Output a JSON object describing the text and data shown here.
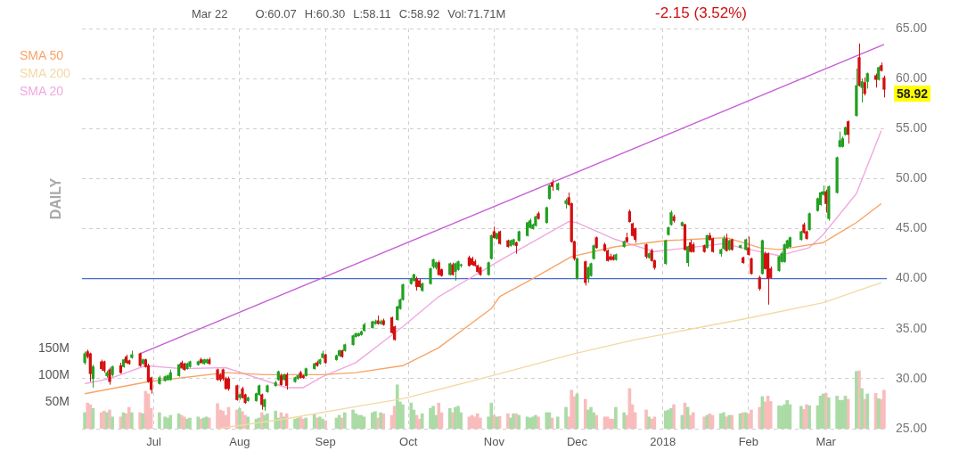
{
  "chart_data": {
    "type": "candlestick",
    "title": "Mar 22",
    "subtitle": "-2.15 (3.52%)",
    "y2label": "DAILY",
    "annotations": [
      "O:60.07",
      "H:60.30",
      "L:58.11",
      "C:58.92",
      "Vol:71.71M",
      "58.92"
    ],
    "xlim": [
      "2017-06-05",
      "2018-03-23"
    ],
    "xticks": [
      {
        "value": "2017-07-01",
        "label": "Jul"
      },
      {
        "value": "2017-08-01",
        "label": "Aug"
      },
      {
        "value": "2017-09-01",
        "label": "Sep"
      },
      {
        "value": "2017-10-01",
        "label": "Oct"
      },
      {
        "value": "2017-11-01",
        "label": "Nov"
      },
      {
        "value": "2017-12-01",
        "label": "Dec"
      },
      {
        "value": "2018-01-01",
        "label": "2018"
      },
      {
        "value": "2018-02-01",
        "label": "Feb"
      },
      {
        "value": "2018-03-01",
        "label": "Mar"
      }
    ],
    "ylim": [
      25,
      65
    ],
    "yticks": [
      {
        "value": 25,
        "label": "25.00"
      },
      {
        "value": 30,
        "label": "30.00"
      },
      {
        "value": 35,
        "label": "35.00"
      },
      {
        "value": 40,
        "label": "40.00"
      },
      {
        "value": 45,
        "label": "45.00"
      },
      {
        "value": 50,
        "label": "50.00"
      },
      {
        "value": 55,
        "label": "55.00"
      },
      {
        "value": 60,
        "label": "60.00"
      },
      {
        "value": 65,
        "label": "65.00"
      }
    ],
    "y2lim": [
      0,
      748
    ],
    "y2ticks": [
      {
        "value": 50,
        "label": "50M"
      },
      {
        "value": 100,
        "label": "100M"
      },
      {
        "value": 150,
        "label": "150M"
      }
    ],
    "grid": true,
    "legend": "top left",
    "ref_lines": [
      {
        "axis": "y",
        "value": 40,
        "color": "#4a6cd4"
      }
    ],
    "x": [
      "2017-06-06",
      "2017-06-07",
      "2017-06-08",
      "2017-06-09",
      "2017-06-12",
      "2017-06-13",
      "2017-06-14",
      "2017-06-15",
      "2017-06-16",
      "2017-06-19",
      "2017-06-20",
      "2017-06-21",
      "2017-06-22",
      "2017-06-23",
      "2017-06-26",
      "2017-06-27",
      "2017-06-28",
      "2017-06-29",
      "2017-06-30",
      "2017-07-03",
      "2017-07-05",
      "2017-07-06",
      "2017-07-07",
      "2017-07-10",
      "2017-07-11",
      "2017-07-12",
      "2017-07-13",
      "2017-07-14",
      "2017-07-17",
      "2017-07-18",
      "2017-07-19",
      "2017-07-20",
      "2017-07-21",
      "2017-07-24",
      "2017-07-25",
      "2017-07-26",
      "2017-07-27",
      "2017-07-28",
      "2017-07-31",
      "2017-08-01",
      "2017-08-02",
      "2017-08-03",
      "2017-08-04",
      "2017-08-07",
      "2017-08-08",
      "2017-08-09",
      "2017-08-10",
      "2017-08-11",
      "2017-08-14",
      "2017-08-15",
      "2017-08-16",
      "2017-08-17",
      "2017-08-18",
      "2017-08-21",
      "2017-08-22",
      "2017-08-23",
      "2017-08-24",
      "2017-08-25",
      "2017-08-28",
      "2017-08-29",
      "2017-08-30",
      "2017-08-31",
      "2017-09-01",
      "2017-09-05",
      "2017-09-06",
      "2017-09-07",
      "2017-09-08",
      "2017-09-11",
      "2017-09-12",
      "2017-09-13",
      "2017-09-14",
      "2017-09-15",
      "2017-09-18",
      "2017-09-19",
      "2017-09-20",
      "2017-09-21",
      "2017-09-22",
      "2017-09-25",
      "2017-09-26",
      "2017-09-27",
      "2017-09-28",
      "2017-09-29",
      "2017-10-02",
      "2017-10-03",
      "2017-10-04",
      "2017-10-05",
      "2017-10-06",
      "2017-10-09",
      "2017-10-10",
      "2017-10-11",
      "2017-10-12",
      "2017-10-13",
      "2017-10-16",
      "2017-10-17",
      "2017-10-18",
      "2017-10-19",
      "2017-10-20",
      "2017-10-23",
      "2017-10-24",
      "2017-10-25",
      "2017-10-26",
      "2017-10-27",
      "2017-10-30",
      "2017-10-31",
      "2017-11-01",
      "2017-11-02",
      "2017-11-03",
      "2017-11-06",
      "2017-11-07",
      "2017-11-08",
      "2017-11-09",
      "2017-11-10",
      "2017-11-13",
      "2017-11-14",
      "2017-11-15",
      "2017-11-16",
      "2017-11-17",
      "2017-11-20",
      "2017-11-21",
      "2017-11-22",
      "2017-11-24",
      "2017-11-27",
      "2017-11-28",
      "2017-11-29",
      "2017-11-30",
      "2017-12-01",
      "2017-12-04",
      "2017-12-05",
      "2017-12-06",
      "2017-12-07",
      "2017-12-08",
      "2017-12-11",
      "2017-12-12",
      "2017-12-13",
      "2017-12-14",
      "2017-12-15",
      "2017-12-18",
      "2017-12-19",
      "2017-12-20",
      "2017-12-21",
      "2017-12-22",
      "2017-12-26",
      "2017-12-27",
      "2017-12-28",
      "2017-12-29",
      "2018-01-02",
      "2018-01-03",
      "2018-01-04",
      "2018-01-05",
      "2018-01-08",
      "2018-01-09",
      "2018-01-10",
      "2018-01-11",
      "2018-01-12",
      "2018-01-16",
      "2018-01-17",
      "2018-01-18",
      "2018-01-19",
      "2018-01-22",
      "2018-01-23",
      "2018-01-24",
      "2018-01-25",
      "2018-01-26",
      "2018-01-29",
      "2018-01-30",
      "2018-01-31",
      "2018-02-01",
      "2018-02-02",
      "2018-02-05",
      "2018-02-06",
      "2018-02-07",
      "2018-02-08",
      "2018-02-09",
      "2018-02-12",
      "2018-02-13",
      "2018-02-14",
      "2018-02-15",
      "2018-02-16",
      "2018-02-20",
      "2018-02-21",
      "2018-02-22",
      "2018-02-23",
      "2018-02-26",
      "2018-02-27",
      "2018-02-28",
      "2018-03-01",
      "2018-03-02",
      "2018-03-05",
      "2018-03-06",
      "2018-03-07",
      "2018-03-08",
      "2018-03-09",
      "2018-03-12",
      "2018-03-13",
      "2018-03-14",
      "2018-03-15",
      "2018-03-16",
      "2018-03-19",
      "2018-03-20",
      "2018-03-21",
      "2018-03-22"
    ],
    "series": [
      {
        "type": "bar",
        "axis": "y2",
        "color": "#aadba5",
        "values": [
          30,
          null,
          null,
          38,
          null,
          null,
          30,
          null,
          22,
          null,
          30,
          null,
          null,
          30,
          null,
          28,
          null,
          null,
          null,
          30,
          22,
          20,
          25,
          28,
          null,
          null,
          18,
          20,
          22,
          null,
          20,
          22,
          null,
          null,
          null,
          null,
          null,
          null,
          null,
          38,
          null,
          null,
          22,
          18,
          20,
          null,
          25,
          28,
          33,
          20,
          null,
          22,
          null,
          18,
          20,
          null,
          null,
          20,
          27,
          null,
          22,
          18,
          null,
          20,
          25,
          null,
          30,
          35,
          28,
          25,
          25,
          22,
          30,
          32,
          null,
          30,
          null,
          null,
          null,
          82,
          50,
          45,
          48,
          35,
          null,
          null,
          28,
          38,
          42,
          25,
          null,
          null,
          38,
          null,
          40,
          42,
          30,
          null,
          null,
          null,
          null,
          null,
          22,
          48,
          null,
          22,
          null,
          null,
          20,
          28,
          null,
          25,
          22,
          20,
          22,
          25,
          null,
          30,
          30,
          null,
          22,
          40,
          null,
          null,
          null,
          65,
          null,
          35,
          40,
          30,
          null,
          null,
          null,
          null,
          null,
          40,
          30,
          null,
          null,
          null,
          null,
          null,
          22,
          null,
          null,
          33,
          35,
          38,
          null,
          25,
          null,
          40,
          null,
          null,
          null,
          25,
          null,
          null,
          28,
          30,
          null,
          25,
          null,
          28,
          null,
          30,
          null,
          null,
          null,
          60,
          null,
          null,
          null,
          43,
          42,
          45,
          53,
          45,
          42,
          null,
          null,
          43,
          43,
          61,
          65,
          null,
          58,
          61,
          53,
          53,
          61,
          null,
          107,
          null,
          75,
          null,
          65,
          null,
          56,
          null,
          null
        ]
      },
      {
        "type": "bar",
        "axis": "y2",
        "color": "#f9bcbc",
        "values": [
          null,
          48,
          45,
          null,
          30,
          33,
          null,
          35,
          null,
          22,
          null,
          28,
          40,
          null,
          30,
          null,
          70,
          65,
          38,
          null,
          null,
          null,
          null,
          null,
          25,
          22,
          null,
          null,
          null,
          18,
          null,
          null,
          20,
          47,
          35,
          33,
          25,
          40,
          35,
          null,
          32,
          25,
          null,
          null,
          null,
          30,
          null,
          null,
          null,
          null,
          30,
          null,
          28,
          null,
          null,
          22,
          18,
          null,
          null,
          20,
          null,
          null,
          15,
          null,
          null,
          20,
          null,
          null,
          null,
          null,
          null,
          null,
          null,
          null,
          20,
          null,
          28,
          25,
          42,
          null,
          null,
          null,
          null,
          null,
          25,
          18,
          null,
          null,
          null,
          null,
          48,
          30,
          null,
          30,
          null,
          null,
          null,
          22,
          25,
          22,
          28,
          20,
          null,
          null,
          25,
          null,
          23,
          28,
          null,
          null,
          28,
          null,
          null,
          null,
          null,
          null,
          22,
          null,
          null,
          20,
          null,
          null,
          22,
          72,
          60,
          null,
          55,
          null,
          null,
          null,
          25,
          22,
          22,
          18,
          18,
          null,
          null,
          25,
          75,
          45,
          30,
          35,
          null,
          18,
          22,
          null,
          null,
          null,
          45,
          null,
          48,
          null,
          25,
          30,
          22,
          null,
          28,
          25,
          null,
          null,
          22,
          null,
          25,
          null,
          30,
          null,
          28,
          35,
          40,
          null,
          50,
          61,
          51,
          null,
          null,
          null,
          null,
          null,
          null,
          36,
          45,
          null,
          null,
          null,
          null,
          66,
          null,
          null,
          null,
          null,
          null,
          55,
          null,
          108,
          null,
          55,
          null,
          66,
          null,
          55,
          72
        ]
      },
      {
        "type": "line",
        "name": "SMA 50",
        "color": "#f7a467",
        "x": [
          "2017-06-06",
          "2017-06-29",
          "2017-07-27",
          "2017-08-10",
          "2017-08-31",
          "2017-09-12",
          "2017-09-29",
          "2017-10-12",
          "2017-10-31",
          "2017-11-03",
          "2017-11-15",
          "2017-11-29",
          "2017-12-15",
          "2018-01-02",
          "2018-01-24",
          "2018-02-05",
          "2018-02-12",
          "2018-02-28",
          "2018-03-12",
          "2018-03-21"
        ],
        "values": [
          28.5,
          29.7,
          30.6,
          30.4,
          30.4,
          30.6,
          31.3,
          33.1,
          37.0,
          38.2,
          40.0,
          42.2,
          43.2,
          43.8,
          44.1,
          43.1,
          42.9,
          43.6,
          45.6,
          47.5
        ]
      },
      {
        "type": "line",
        "name": "SMA 200",
        "color": "#f3d9a4",
        "x": [
          "2017-07-24",
          "2017-08-18",
          "2017-09-14",
          "2017-09-29",
          "2017-10-30",
          "2017-11-30",
          "2017-12-22",
          "2018-01-31",
          "2018-02-28",
          "2018-03-21"
        ],
        "values": [
          25.0,
          26.0,
          27.3,
          28.0,
          30.2,
          32.5,
          33.9,
          36.0,
          37.6,
          39.6
        ]
      },
      {
        "type": "line",
        "name": "SMA 20",
        "color": "#f0a8e0",
        "x": [
          "2017-06-06",
          "2017-06-15",
          "2017-06-28",
          "2017-07-11",
          "2017-07-27",
          "2017-08-18",
          "2017-08-24",
          "2017-08-31",
          "2017-09-12",
          "2017-09-29",
          "2017-10-12",
          "2017-11-03",
          "2017-11-28",
          "2017-12-01",
          "2017-12-14",
          "2017-12-29",
          "2018-01-23",
          "2018-02-05",
          "2018-02-12",
          "2018-02-23",
          "2018-02-28",
          "2018-03-12",
          "2018-03-21"
        ],
        "values": [
          29.5,
          30.0,
          31.3,
          31.0,
          31.1,
          29.1,
          29.1,
          30.2,
          31.6,
          35.2,
          38.2,
          41.8,
          45.7,
          45.6,
          44.0,
          42.7,
          43.5,
          42.7,
          42.3,
          43.1,
          44.4,
          48.5,
          54.8
        ]
      },
      {
        "type": "line",
        "color": "#c65ed6",
        "x": [
          "2017-06-26",
          "2018-03-22"
        ],
        "values": [
          32.5,
          63.4
        ]
      },
      {
        "color": "#22a022",
        "ohlc": [
          [
            31.6,
            32.7,
            31.4,
            32.5
          ],
          null,
          null,
          [
            30.0,
            31.4,
            29.1,
            31.2
          ],
          null,
          null,
          [
            30.3,
            30.8,
            30.1,
            30.6
          ],
          null,
          [
            30.4,
            31.3,
            30.2,
            31.2
          ],
          null,
          [
            31.2,
            32.0,
            31.1,
            31.9
          ],
          null,
          null,
          [
            32.1,
            32.8,
            32.0,
            32.4
          ],
          null,
          [
            31.5,
            32.0,
            31.4,
            31.9
          ],
          null,
          null,
          null,
          [
            29.5,
            30.3,
            29.4,
            30.1
          ],
          [
            29.8,
            30.3,
            29.7,
            30.2
          ],
          [
            29.9,
            30.4,
            29.8,
            30.3
          ],
          [
            29.9,
            30.9,
            29.8,
            30.6
          ],
          [
            30.3,
            31.5,
            30.2,
            31.4
          ],
          null,
          null,
          [
            31.0,
            31.6,
            30.9,
            31.5
          ],
          [
            31.2,
            31.8,
            31.1,
            31.7
          ],
          [
            31.4,
            31.8,
            31.3,
            31.7
          ],
          null,
          [
            31.5,
            32.0,
            31.4,
            31.9
          ],
          [
            31.6,
            32.0,
            31.5,
            31.9
          ],
          null,
          null,
          null,
          null,
          null,
          null,
          null,
          [
            28.1,
            28.5,
            27.9,
            28.4
          ],
          null,
          null,
          [
            27.8,
            28.2,
            27.7,
            28.1
          ],
          [
            27.8,
            28.6,
            27.7,
            28.5
          ],
          [
            28.4,
            29.4,
            28.3,
            29.3
          ],
          null,
          [
            27.2,
            28.0,
            26.8,
            27.9
          ],
          [
            28.7,
            29.4,
            28.6,
            29.3
          ],
          [
            29.3,
            29.8,
            29.2,
            29.6
          ],
          [
            29.9,
            30.8,
            29.8,
            30.7
          ],
          null,
          [
            29.9,
            30.5,
            29.8,
            30.4
          ],
          null,
          [
            29.7,
            30.2,
            29.6,
            30.1
          ],
          [
            30.0,
            30.4,
            29.9,
            30.3
          ],
          null,
          null,
          [
            30.3,
            31.1,
            30.2,
            31.0
          ],
          [
            31.0,
            31.6,
            30.9,
            31.5
          ],
          null,
          [
            31.5,
            32.0,
            31.4,
            31.9
          ],
          [
            32.1,
            32.8,
            32.0,
            32.5
          ],
          null,
          [
            31.9,
            32.4,
            31.8,
            32.3
          ],
          [
            32.3,
            32.9,
            32.2,
            32.8
          ],
          null,
          [
            32.8,
            33.5,
            32.7,
            33.4
          ],
          [
            33.4,
            34.4,
            33.3,
            34.3
          ],
          [
            34.2,
            34.6,
            34.1,
            34.5
          ],
          [
            34.3,
            34.6,
            34.2,
            34.5
          ],
          [
            34.4,
            34.8,
            34.3,
            34.7
          ],
          [
            34.8,
            35.6,
            34.7,
            35.4
          ],
          [
            35.1,
            35.8,
            35.0,
            35.7
          ],
          [
            35.5,
            35.9,
            35.4,
            35.7
          ],
          null,
          [
            35.5,
            35.9,
            35.4,
            35.7
          ],
          null,
          null,
          null,
          [
            35.9,
            37.3,
            35.8,
            37.2
          ],
          [
            37.0,
            38.0,
            36.9,
            37.9
          ],
          [
            37.9,
            39.5,
            37.8,
            39.4
          ],
          [
            39.5,
            40.1,
            39.4,
            40.0
          ],
          [
            39.8,
            40.5,
            39.7,
            40.4
          ],
          null,
          null,
          [
            38.8,
            39.6,
            38.7,
            39.5
          ],
          [
            39.5,
            41.1,
            39.4,
            41.0
          ],
          [
            41.2,
            42.0,
            41.0,
            41.9
          ],
          [
            41.1,
            41.7,
            40.9,
            41.6
          ],
          null,
          null,
          [
            40.4,
            41.6,
            40.3,
            41.5
          ],
          null,
          [
            40.7,
            41.6,
            39.8,
            41.5
          ],
          [
            40.9,
            41.8,
            40.8,
            41.7
          ],
          [
            41.3,
            41.5,
            41.1,
            41.4
          ],
          null,
          null,
          null,
          null,
          null,
          [
            40.4,
            41.7,
            40.3,
            41.6
          ],
          [
            42.0,
            44.4,
            41.9,
            44.3
          ],
          null,
          [
            44.0,
            44.6,
            43.9,
            44.5
          ],
          null,
          null,
          [
            43.3,
            43.9,
            43.2,
            43.8
          ],
          [
            43.4,
            44.0,
            43.3,
            43.9
          ],
          null,
          [
            43.8,
            44.8,
            43.7,
            44.7
          ],
          [
            44.3,
            45.7,
            44.2,
            45.6
          ],
          [
            45.1,
            46.0,
            45.0,
            45.8
          ],
          [
            45.0,
            45.5,
            44.9,
            45.4
          ],
          [
            45.3,
            46.3,
            45.2,
            46.2
          ],
          null,
          [
            45.6,
            47.2,
            45.5,
            47.1
          ],
          [
            48.0,
            49.4,
            47.9,
            49.3
          ],
          null,
          [
            48.9,
            49.6,
            48.8,
            49.5
          ],
          [
            47.5,
            48.0,
            47.0,
            47.8
          ],
          null,
          null,
          null,
          [
            40.0,
            42.1,
            39.9,
            42.0
          ],
          null,
          [
            40.0,
            41.2,
            39.6,
            41.1
          ],
          [
            40.3,
            41.6,
            40.2,
            41.5
          ],
          [
            42.0,
            43.4,
            41.9,
            43.3
          ],
          null,
          null,
          null,
          null,
          null,
          [
            41.9,
            42.5,
            41.8,
            42.4
          ],
          [
            43.2,
            43.8,
            43.1,
            43.7
          ],
          null,
          null,
          null,
          null,
          null,
          [
            42.1,
            42.6,
            42.0,
            42.5
          ],
          null,
          null,
          [
            41.5,
            43.9,
            41.4,
            43.8
          ],
          [
            44.4,
            45.2,
            44.3,
            45.1
          ],
          [
            45.4,
            46.8,
            45.3,
            46.6
          ],
          null,
          [
            45.3,
            45.7,
            45.2,
            45.6
          ],
          null,
          [
            41.6,
            43.3,
            41.2,
            43.2
          ],
          null,
          null,
          null,
          [
            43.1,
            44.4,
            43.0,
            44.3
          ],
          null,
          null,
          [
            42.5,
            43.0,
            42.2,
            42.9
          ],
          [
            43.0,
            44.3,
            42.9,
            44.0
          ],
          null,
          [
            42.9,
            43.9,
            42.8,
            43.8
          ],
          null,
          [
            43.1,
            43.4,
            43.0,
            43.3
          ],
          null,
          [
            42.9,
            44.0,
            42.8,
            43.9
          ],
          null,
          null,
          null,
          [
            40.5,
            43.9,
            40.4,
            43.8
          ],
          null,
          null,
          null,
          [
            40.8,
            42.3,
            40.7,
            42.2
          ],
          [
            41.7,
            42.7,
            41.6,
            42.5
          ],
          [
            41.7,
            43.5,
            41.6,
            43.4
          ],
          [
            43.1,
            43.9,
            43.0,
            43.8
          ],
          [
            43.2,
            44.2,
            43.1,
            44.1
          ],
          [
            43.9,
            44.8,
            43.8,
            44.7
          ],
          null,
          null,
          [
            44.9,
            46.6,
            44.8,
            46.5
          ],
          [
            46.8,
            48.1,
            46.7,
            48.0
          ],
          [
            47.4,
            48.7,
            47.3,
            48.6
          ],
          [
            48.4,
            49.3,
            48.3,
            48.7
          ],
          null,
          [
            46.0,
            49.3,
            45.8,
            49.2
          ],
          [
            48.6,
            52.2,
            48.5,
            52.1
          ],
          [
            53.2,
            54.7,
            53.1,
            53.8
          ],
          [
            53.2,
            54.2,
            53.1,
            54.0
          ],
          [
            54.4,
            55.2,
            54.3,
            55.1
          ],
          null,
          [
            56.3,
            61.0,
            56.2,
            59.3
          ],
          null,
          [
            59.1,
            60.0,
            57.6,
            59.7
          ],
          null,
          [
            59.7,
            60.6,
            59.0,
            60.5
          ],
          null,
          [
            59.9,
            61.2,
            59.8,
            61.1
          ],
          null,
          null
        ]
      },
      {
        "color": "#d40f0f",
        "ohlc": [
          null,
          [
            32.7,
            32.9,
            32.0,
            32.2
          ],
          [
            32.5,
            32.6,
            29.7,
            30.5
          ],
          null,
          [
            31.7,
            31.9,
            30.8,
            31.0
          ],
          [
            31.7,
            31.8,
            30.6,
            30.8
          ],
          null,
          [
            30.9,
            31.1,
            29.4,
            29.7
          ],
          null,
          [
            31.3,
            31.6,
            30.5,
            30.6
          ],
          null,
          [
            32.2,
            32.4,
            31.5,
            31.6
          ],
          [
            31.8,
            31.9,
            31.4,
            31.5
          ],
          null,
          [
            32.5,
            32.6,
            31.2,
            31.3
          ],
          null,
          [
            31.9,
            32.0,
            31.1,
            31.2
          ],
          [
            31.3,
            31.5,
            29.6,
            29.7
          ],
          [
            30.1,
            30.2,
            28.5,
            28.9
          ],
          null,
          null,
          null,
          null,
          null,
          [
            31.6,
            31.8,
            31.0,
            31.1
          ],
          [
            31.5,
            31.6,
            30.8,
            30.9
          ],
          null,
          null,
          null,
          [
            31.9,
            32.1,
            31.5,
            31.6
          ],
          null,
          null,
          [
            31.9,
            32.1,
            31.4,
            31.5
          ],
          [
            30.9,
            31.0,
            29.8,
            29.9
          ],
          [
            30.4,
            30.5,
            29.7,
            29.9
          ],
          [
            30.9,
            31.0,
            29.8,
            30.0
          ],
          [
            30.0,
            30.2,
            28.9,
            29.0
          ],
          [
            30.0,
            30.2,
            28.8,
            29.0
          ],
          [
            29.3,
            29.4,
            27.8,
            27.9
          ],
          null,
          [
            29.0,
            29.2,
            28.0,
            28.1
          ],
          [
            28.4,
            28.5,
            27.5,
            27.6
          ],
          null,
          null,
          null,
          [
            28.4,
            28.5,
            26.9,
            27.4
          ],
          null,
          null,
          null,
          null,
          [
            30.3,
            30.5,
            29.3,
            29.4
          ],
          null,
          [
            30.4,
            30.6,
            28.9,
            29.3
          ],
          null,
          null,
          [
            30.6,
            30.8,
            30.0,
            30.1
          ],
          [
            30.3,
            30.4,
            30.0,
            30.1
          ],
          null,
          null,
          [
            31.6,
            31.8,
            31.2,
            31.3
          ],
          null,
          null,
          [
            32.4,
            32.5,
            31.5,
            31.6
          ],
          null,
          null,
          [
            32.8,
            32.9,
            32.1,
            32.2
          ],
          null,
          null,
          null,
          null,
          null,
          null,
          null,
          null,
          [
            35.8,
            36.3,
            35.4,
            35.5
          ],
          null,
          [
            35.8,
            36.0,
            35.3,
            35.4
          ],
          [
            36.1,
            36.2,
            34.5,
            34.6
          ],
          [
            35.2,
            35.3,
            33.8,
            33.9
          ],
          null,
          null,
          null,
          null,
          null,
          [
            40.0,
            40.2,
            38.8,
            39.2
          ],
          [
            39.8,
            40.0,
            39.1,
            39.2
          ],
          null,
          null,
          null,
          null,
          [
            41.6,
            41.8,
            40.3,
            40.4
          ],
          [
            40.9,
            41.0,
            40.2,
            40.3
          ],
          null,
          [
            41.4,
            41.6,
            40.3,
            40.4
          ],
          null,
          null,
          null,
          [
            42.1,
            42.3,
            41.2,
            41.3
          ],
          [
            42.0,
            42.2,
            41.3,
            41.4
          ],
          [
            41.7,
            41.9,
            41.2,
            41.3
          ],
          [
            41.3,
            41.4,
            40.6,
            40.7
          ],
          [
            41.1,
            41.2,
            40.3,
            40.4
          ],
          null,
          null,
          [
            44.7,
            45.2,
            44.0,
            44.1
          ],
          null,
          [
            44.7,
            44.8,
            43.4,
            43.5
          ],
          [
            43.8,
            43.9,
            43.1,
            43.2
          ],
          null,
          null,
          [
            43.6,
            43.7,
            42.5,
            43.3
          ],
          null,
          null,
          null,
          null,
          null,
          [
            46.5,
            46.7,
            45.9,
            46.0
          ],
          null,
          null,
          [
            49.6,
            49.9,
            48.8,
            49.2
          ],
          null,
          null,
          [
            48.1,
            48.6,
            47.3,
            47.4
          ],
          [
            47.5,
            47.6,
            43.6,
            43.7
          ],
          [
            43.7,
            43.8,
            41.8,
            42.0
          ],
          null,
          [
            41.7,
            41.8,
            39.3,
            39.6
          ],
          null,
          null,
          null,
          [
            44.1,
            44.2,
            43.0,
            43.1
          ],
          [
            43.4,
            43.6,
            42.7,
            42.8
          ],
          [
            42.8,
            42.9,
            41.7,
            41.8
          ],
          [
            42.2,
            42.5,
            41.8,
            41.9
          ],
          [
            42.2,
            42.4,
            41.8,
            41.9
          ],
          null,
          null,
          [
            44.1,
            44.6,
            43.6,
            43.7
          ],
          [
            46.7,
            46.9,
            45.6,
            45.7
          ],
          [
            45.5,
            45.6,
            44.2,
            44.3
          ],
          [
            45.0,
            45.1,
            43.6,
            43.9
          ],
          [
            43.4,
            43.5,
            42.0,
            42.2
          ],
          null,
          [
            42.8,
            43.0,
            41.7,
            41.8
          ],
          [
            41.8,
            41.9,
            40.9,
            41.1
          ],
          null,
          null,
          null,
          [
            46.2,
            46.4,
            45.6,
            45.8
          ],
          null,
          [
            45.4,
            45.5,
            42.8,
            42.9
          ],
          null,
          [
            43.6,
            43.9,
            42.6,
            42.7
          ],
          [
            43.4,
            43.6,
            42.6,
            42.7
          ],
          [
            43.3,
            43.4,
            42.6,
            42.7
          ],
          null,
          [
            44.3,
            44.6,
            43.8,
            43.9
          ],
          [
            44.0,
            44.1,
            42.6,
            42.7
          ],
          null,
          null,
          [
            44.0,
            44.5,
            42.7,
            42.8
          ],
          null,
          [
            43.9,
            44.0,
            42.8,
            42.9
          ],
          null,
          [
            42.1,
            42.2,
            41.5,
            41.6
          ],
          null,
          [
            43.1,
            44.2,
            42.3,
            42.4
          ],
          [
            42.0,
            42.1,
            40.4,
            40.5
          ],
          [
            40.1,
            40.3,
            38.8,
            39.0
          ],
          null,
          [
            42.5,
            42.7,
            40.9,
            41.0
          ],
          [
            42.5,
            42.6,
            37.4,
            40.0
          ],
          [
            41.0,
            41.2,
            40.0,
            40.1
          ],
          null,
          null,
          null,
          null,
          null,
          null,
          [
            45.4,
            45.6,
            44.5,
            44.6
          ],
          [
            44.7,
            44.8,
            43.9,
            44.0
          ],
          null,
          null,
          null,
          null,
          [
            48.7,
            48.9,
            46.6,
            47.5
          ],
          null,
          null,
          null,
          null,
          null,
          [
            55.7,
            55.8,
            53.5,
            54.4
          ],
          null,
          [
            62.1,
            63.5,
            59.2,
            59.3
          ],
          null,
          [
            59.6,
            60.1,
            58.3,
            58.5
          ],
          null,
          [
            60.3,
            60.5,
            59.1,
            59.9
          ],
          null,
          [
            61.3,
            61.6,
            60.7,
            60.8
          ],
          [
            60.07,
            60.3,
            58.11,
            58.92
          ]
        ]
      }
    ]
  }
}
